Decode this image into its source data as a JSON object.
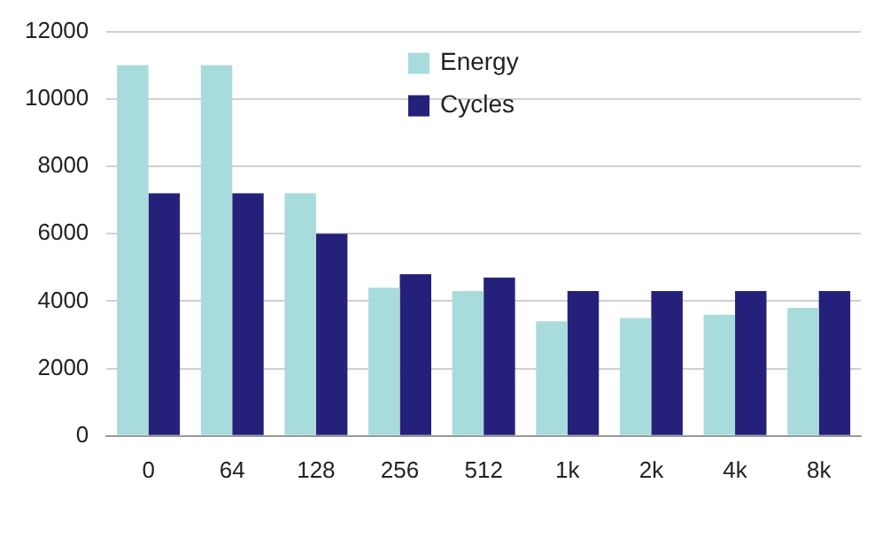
{
  "chart_data": {
    "type": "bar",
    "categories": [
      "0",
      "64",
      "128",
      "256",
      "512",
      "1k",
      "2k",
      "4k",
      "8k"
    ],
    "series": [
      {
        "name": "Energy",
        "color": "#a8dcdc",
        "values": [
          11000,
          11000,
          7200,
          4400,
          4300,
          3400,
          3500,
          3600,
          3800
        ]
      },
      {
        "name": "Cycles",
        "color": "#25217a",
        "values": [
          7200,
          7200,
          6000,
          4800,
          4700,
          4300,
          4300,
          4300,
          4300
        ]
      }
    ],
    "ylim": [
      0,
      12000
    ],
    "yticks": [
      0,
      2000,
      4000,
      6000,
      8000,
      10000,
      12000
    ],
    "grid": "y",
    "legend": "top"
  }
}
